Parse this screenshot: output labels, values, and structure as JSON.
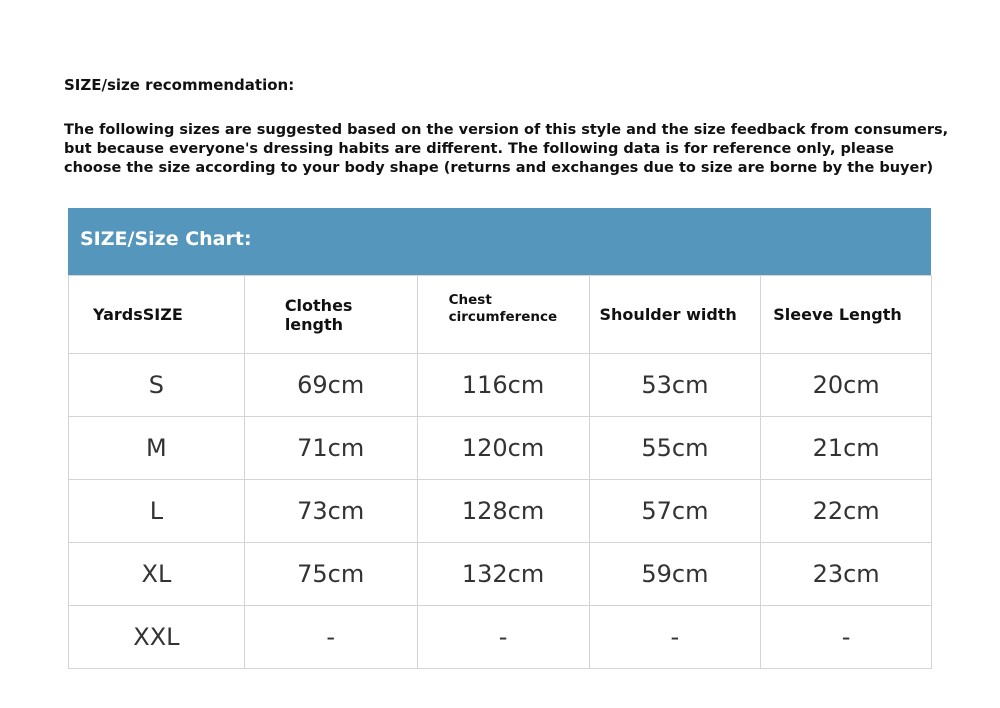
{
  "title": "SIZE/size recommendation:",
  "intro": [
    "The following sizes are suggested based on the version of this style and the size feedback from consumers,",
    "but because everyone's dressing habits are different. The following data is for reference only, please",
    "choose the size according to your body shape (returns and exchanges due to size are borne by the buyer)"
  ],
  "table": {
    "banner": "SIZE/Size Chart:",
    "header_color": "#5596bd",
    "columns": [
      "YardsSIZE",
      "Clothes length",
      "Chest circumference",
      "Shoulder width",
      "Sleeve Length"
    ],
    "rows": [
      [
        "S",
        "69cm",
        "116cm",
        "53cm",
        "20cm"
      ],
      [
        "M",
        "71cm",
        "120cm",
        "55cm",
        "21cm"
      ],
      [
        "L",
        "73cm",
        "128cm",
        "57cm",
        "22cm"
      ],
      [
        "XL",
        "75cm",
        "132cm",
        "59cm",
        "23cm"
      ],
      [
        "XXL",
        "-",
        "-",
        "-",
        "-"
      ]
    ]
  }
}
